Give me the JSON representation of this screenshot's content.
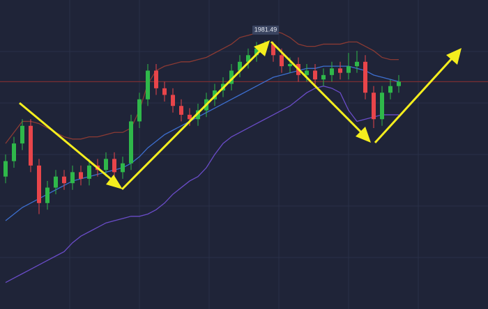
{
  "chart_data": {
    "type": "candlestick",
    "ylim": [
      1860,
      2000
    ],
    "up_color": "#2fb84a",
    "down_color": "#e8454a",
    "open": [
      1920,
      1927,
      1935,
      1943,
      1925,
      1908,
      1915,
      1920,
      1917,
      1922,
      1919,
      1925,
      1923,
      1928,
      1922,
      1926,
      1945,
      1955,
      1968,
      1960,
      1957,
      1952,
      1948,
      1946,
      1950,
      1955,
      1959,
      1962,
      1968,
      1972,
      1975,
      1978,
      1980,
      1975,
      1970,
      1971,
      1966,
      1968,
      1964,
      1966,
      1969,
      1967,
      1970,
      1972,
      1958,
      1946,
      1958,
      1961
    ],
    "high": [
      1930,
      1938,
      1946,
      1946,
      1928,
      1918,
      1923,
      1923,
      1925,
      1925,
      1928,
      1928,
      1931,
      1931,
      1929,
      1948,
      1958,
      1971,
      1971,
      1963,
      1960,
      1955,
      1951,
      1953,
      1958,
      1962,
      1965,
      1971,
      1975,
      1978,
      1981,
      1981.49,
      1981,
      1978,
      1974,
      1974,
      1971,
      1971,
      1969,
      1972,
      1972,
      1976,
      1977,
      1975,
      1961,
      1961,
      1964,
      1966
    ],
    "low": [
      1917,
      1924,
      1932,
      1922,
      1903,
      1905,
      1912,
      1914,
      1914,
      1916,
      1916,
      1920,
      1920,
      1919,
      1919,
      1923,
      1942,
      1952,
      1957,
      1954,
      1949,
      1945,
      1943,
      1943,
      1947,
      1952,
      1956,
      1959,
      1965,
      1969,
      1972,
      1975,
      1972,
      1967,
      1967,
      1963,
      1963,
      1961,
      1961,
      1963,
      1964,
      1964,
      1967,
      1955,
      1942,
      1943,
      1955,
      1958
    ],
    "close": [
      1927,
      1935,
      1943,
      1925,
      1908,
      1915,
      1920,
      1917,
      1922,
      1919,
      1925,
      1923,
      1928,
      1922,
      1926,
      1945,
      1955,
      1968,
      1960,
      1957,
      1952,
      1948,
      1946,
      1950,
      1955,
      1959,
      1962,
      1968,
      1972,
      1975,
      1978,
      1980,
      1975,
      1970,
      1971,
      1966,
      1968,
      1964,
      1966,
      1969,
      1967,
      1970,
      1972,
      1958,
      1946,
      1958,
      1961,
      1963
    ],
    "overlays": [
      {
        "color": "#8b3a33",
        "values": [
          1935,
          1940,
          1945,
          1945,
          1944,
          1942,
          1940,
          1938,
          1937,
          1937,
          1938,
          1938,
          1939,
          1940,
          1940,
          1942,
          1950,
          1962,
          1968,
          1970,
          1971,
          1972,
          1972,
          1973,
          1974,
          1976,
          1978,
          1980,
          1983,
          1984,
          1985,
          1986,
          1986,
          1985,
          1983,
          1980,
          1979,
          1979,
          1980,
          1980,
          1980,
          1981,
          1981,
          1979,
          1977,
          1974,
          1973,
          1973
        ]
      },
      {
        "color": "#3d6fd0",
        "values": [
          1900,
          1903,
          1906,
          1908,
          1910,
          1912,
          1914,
          1916,
          1918,
          1919,
          1920,
          1921,
          1922,
          1923,
          1924,
          1926,
          1929,
          1933,
          1936,
          1939,
          1941,
          1943,
          1945,
          1947,
          1949,
          1951,
          1953,
          1955,
          1957,
          1959,
          1961,
          1963,
          1965,
          1966,
          1967,
          1968,
          1969,
          1969,
          1970,
          1970,
          1970,
          1970,
          1969,
          1968,
          1966,
          1965,
          1964,
          1963
        ]
      },
      {
        "color": "#6a4cc8",
        "values": [
          1872,
          1874,
          1876,
          1878,
          1880,
          1882,
          1884,
          1886,
          1890,
          1893,
          1895,
          1897,
          1899,
          1900,
          1901,
          1902,
          1902,
          1903,
          1905,
          1908,
          1912,
          1915,
          1918,
          1920,
          1924,
          1930,
          1935,
          1938,
          1940,
          1942,
          1944,
          1946,
          1948,
          1950,
          1952,
          1955,
          1958,
          1960,
          1961,
          1960,
          1958,
          1950,
          1945,
          1946,
          1947,
          1948,
          1948,
          1948
        ]
      }
    ],
    "hline": 1963,
    "hline_color": "#7a2e33",
    "annotation": {
      "text": "1981.49",
      "index": 31
    }
  }
}
